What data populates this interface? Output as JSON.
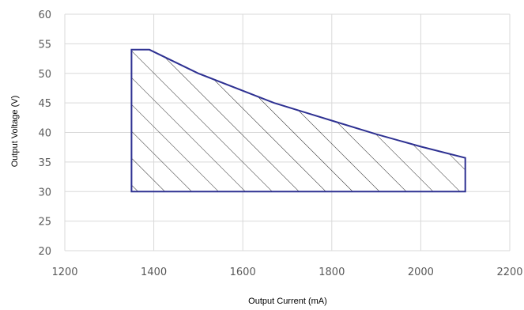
{
  "chart_data": {
    "type": "area",
    "title": "",
    "xlabel": "Output Current (mA)",
    "ylabel": "Output Voltage (V)",
    "xlim": [
      1200,
      2200
    ],
    "ylim": [
      20,
      60
    ],
    "xticks": [
      1200,
      1400,
      1600,
      1800,
      2000,
      2200
    ],
    "yticks": [
      20,
      25,
      30,
      35,
      40,
      45,
      50,
      55,
      60
    ],
    "grid": true,
    "legend": "none",
    "series": [
      {
        "fill": "diagonal-hatch",
        "points": [
          {
            "x": 1350,
            "y": 30
          },
          {
            "x": 1350,
            "y": 54
          },
          {
            "x": 1390,
            "y": 54
          },
          {
            "x": 1500,
            "y": 50
          },
          {
            "x": 1670,
            "y": 45
          },
          {
            "x": 1800,
            "y": 42
          },
          {
            "x": 1900,
            "y": 39.7
          },
          {
            "x": 2000,
            "y": 37.6
          },
          {
            "x": 2100,
            "y": 35.7
          },
          {
            "x": 2100,
            "y": 30
          }
        ]
      }
    ],
    "colors": {
      "outline": "#2E3192",
      "hatch": "#262626",
      "grid": "#D9D9D9",
      "tick_text": "#595959"
    }
  }
}
